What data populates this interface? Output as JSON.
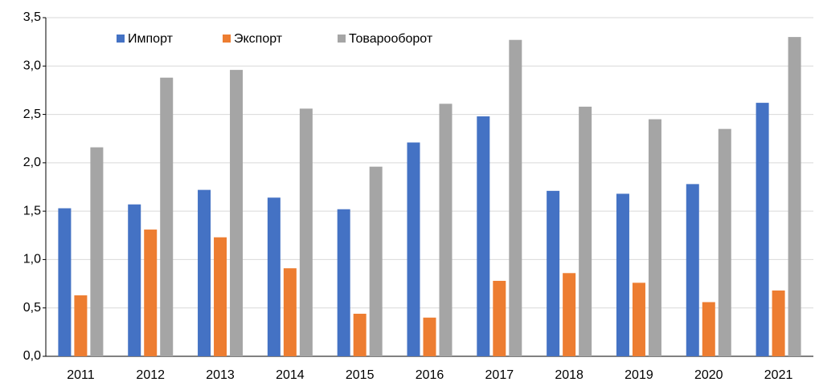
{
  "chart_data": {
    "type": "bar",
    "categories": [
      "2011",
      "2012",
      "2013",
      "2014",
      "2015",
      "2016",
      "2017",
      "2018",
      "2019",
      "2020",
      "2021"
    ],
    "series": [
      {
        "name": "Импорт",
        "color": "#4472c4",
        "values": [
          1.53,
          1.57,
          1.72,
          1.64,
          1.52,
          2.21,
          2.48,
          1.71,
          1.68,
          1.78,
          2.62
        ]
      },
      {
        "name": "Экспорт",
        "color": "#ed7d31",
        "values": [
          0.63,
          1.31,
          1.23,
          0.91,
          0.44,
          0.4,
          0.78,
          0.86,
          0.76,
          0.56,
          0.68
        ]
      },
      {
        "name": "Товарооборот",
        "color": "#a5a5a5",
        "values": [
          2.16,
          2.88,
          2.96,
          2.56,
          1.96,
          2.61,
          3.27,
          2.58,
          2.45,
          2.35,
          3.3
        ]
      }
    ],
    "ylim": [
      0,
      3.5
    ],
    "yticks": [
      {
        "value": 0,
        "label": "0,0"
      },
      {
        "value": 0.5,
        "label": "0,5"
      },
      {
        "value": 1,
        "label": "1,0"
      },
      {
        "value": 1.5,
        "label": "1,5"
      },
      {
        "value": 2,
        "label": "2,0"
      },
      {
        "value": 2.5,
        "label": "2,5"
      },
      {
        "value": 3,
        "label": "3,0"
      },
      {
        "value": 3.5,
        "label": "3,5"
      }
    ],
    "grid": true,
    "legend": "top-left"
  }
}
